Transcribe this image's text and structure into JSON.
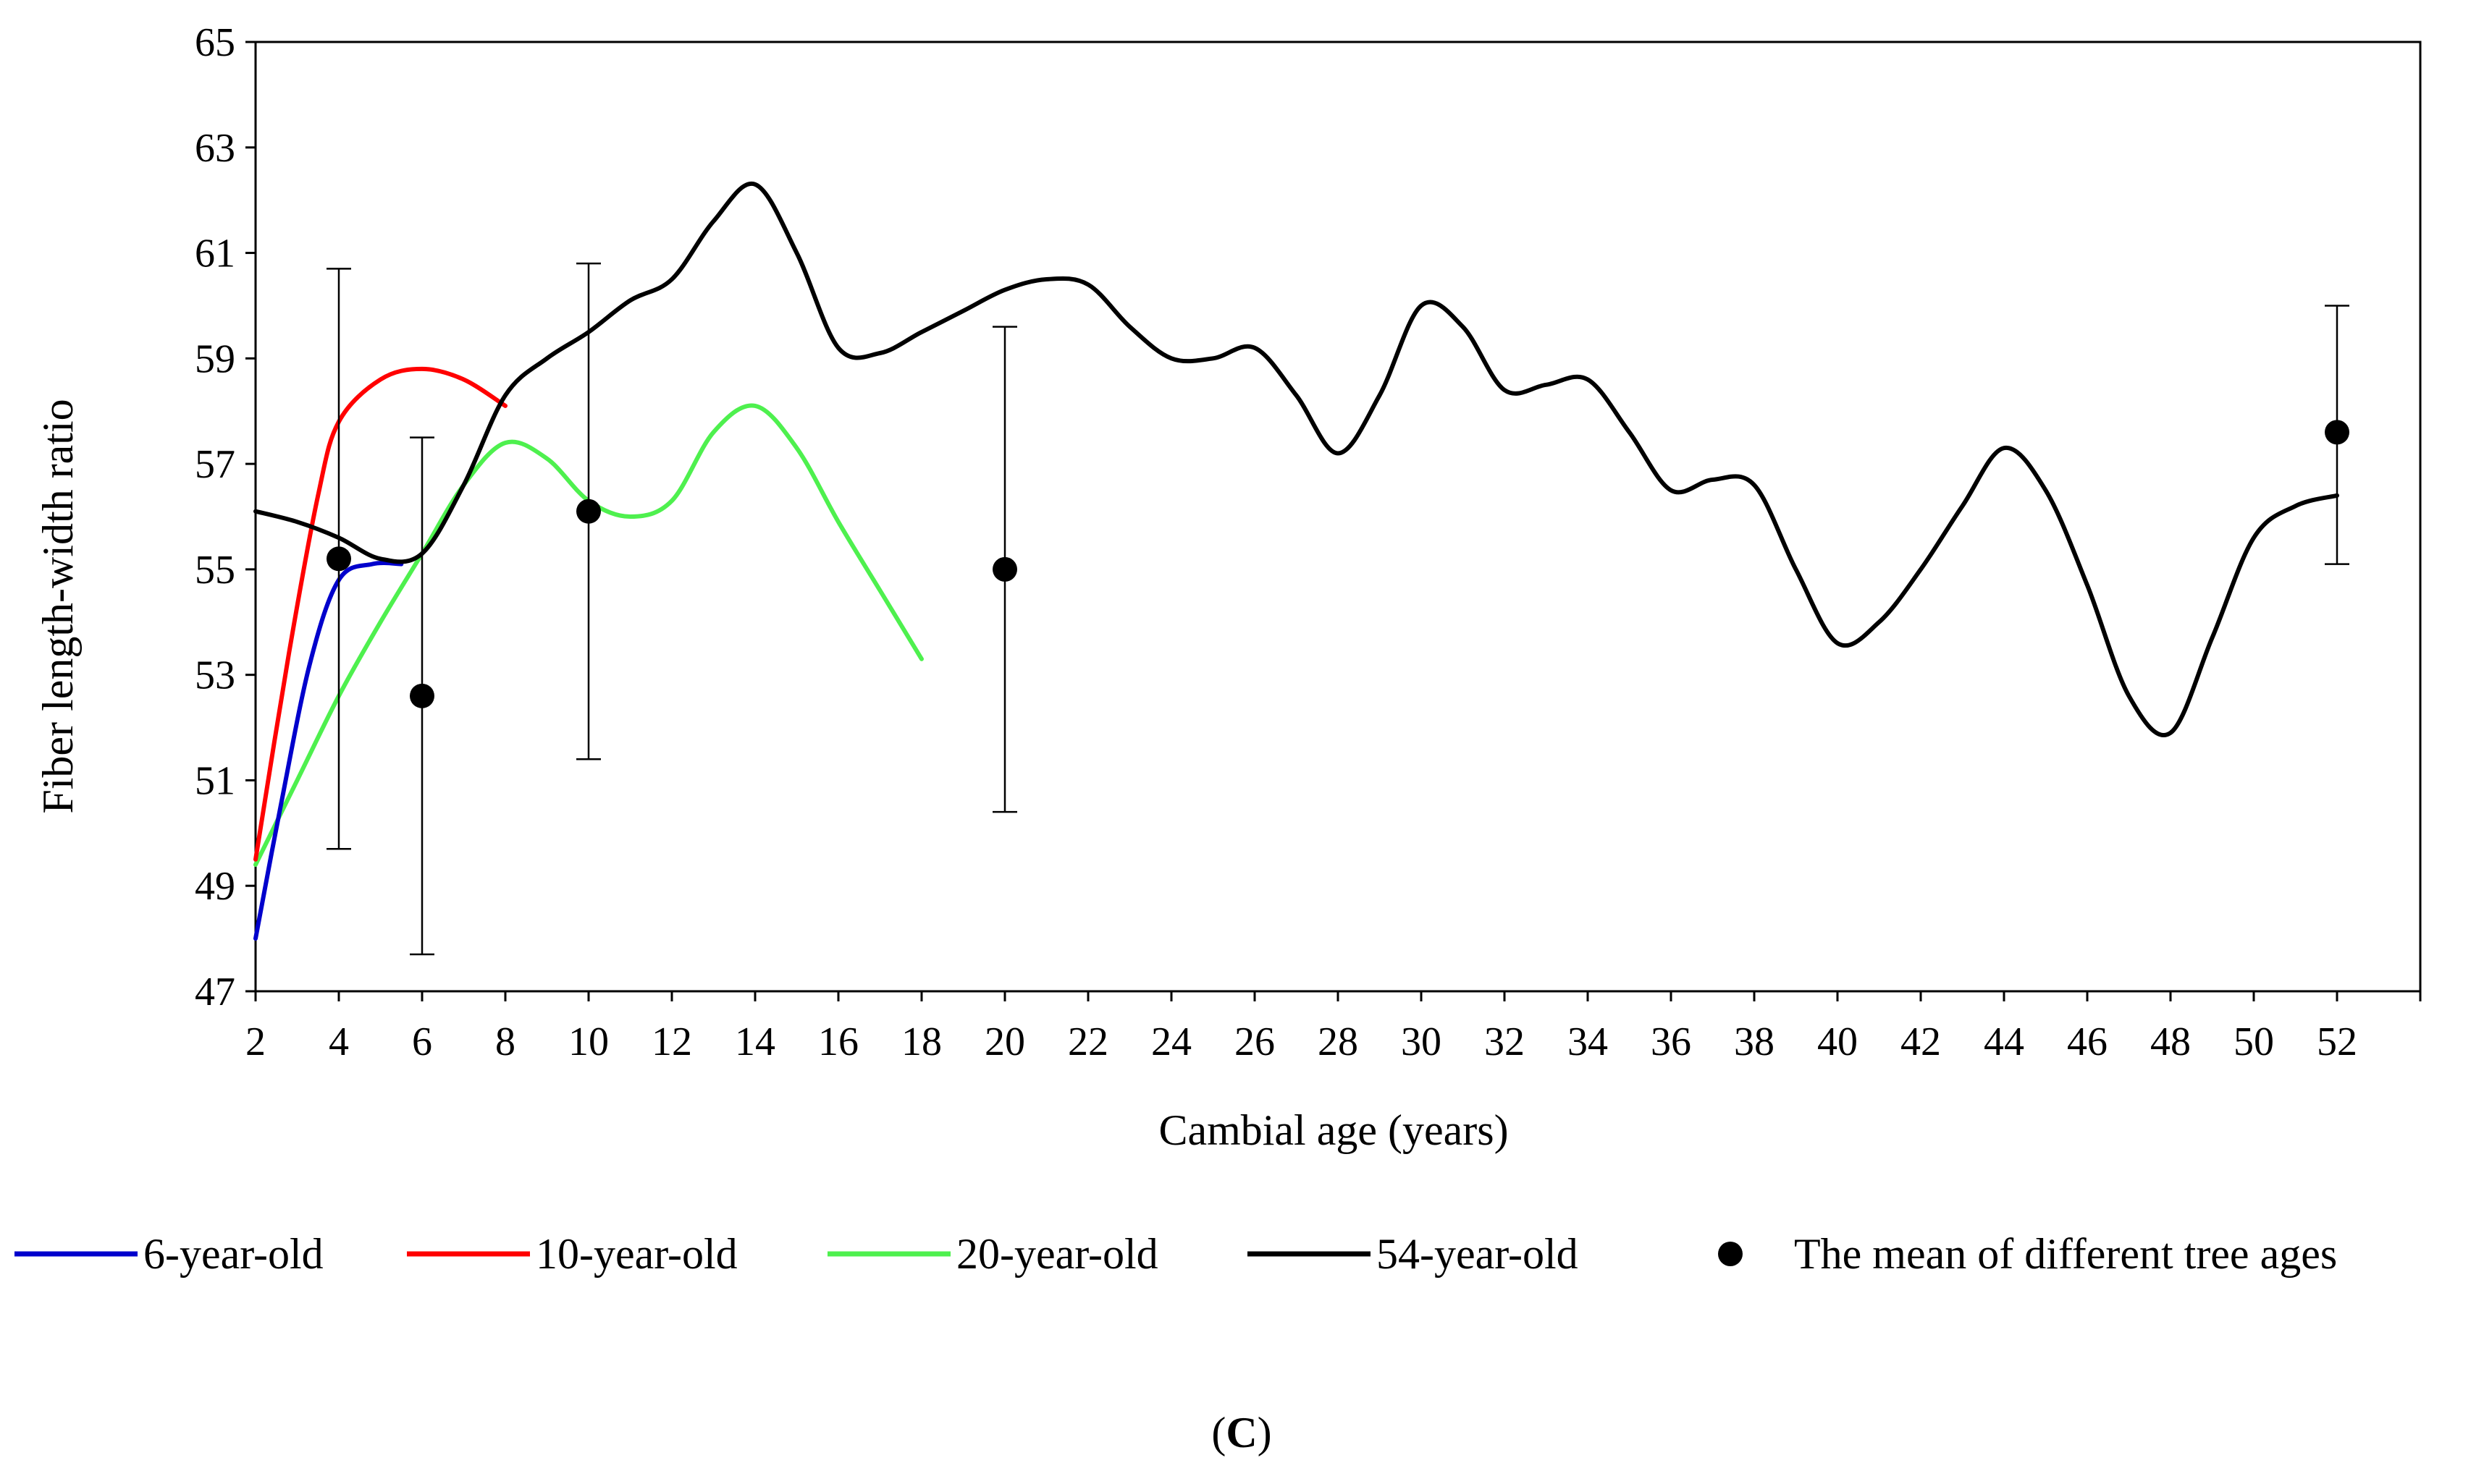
{
  "chart_data": {
    "type": "line",
    "panel_label": "C",
    "xlabel": "Cambial age (years)",
    "ylabel": "Fiber length-width ratio",
    "xlim": [
      2,
      54
    ],
    "ylim": [
      47,
      65
    ],
    "xticks": [
      "2",
      "4",
      "6",
      "8",
      "10",
      "12",
      "14",
      "16",
      "18",
      "20",
      "22",
      "24",
      "26",
      "28",
      "30",
      "32",
      "34",
      "36",
      "38",
      "40",
      "42",
      "44",
      "46",
      "48",
      "50",
      "52"
    ],
    "yticks": [
      "47",
      "49",
      "51",
      "53",
      "55",
      "57",
      "59",
      "61",
      "63",
      "65"
    ],
    "series": [
      {
        "name": "6-year-old",
        "color": "#0000cc",
        "points": [
          [
            2,
            48.0
          ],
          [
            2.6,
            50.5
          ],
          [
            3.3,
            53.2
          ],
          [
            4,
            54.8
          ],
          [
            4.8,
            55.1
          ],
          [
            5.5,
            55.1
          ]
        ]
      },
      {
        "name": "10-year-old",
        "color": "#ff0000",
        "points": [
          [
            2,
            49.5
          ],
          [
            2.8,
            53.4
          ],
          [
            3.5,
            56.4
          ],
          [
            4,
            57.8
          ],
          [
            5,
            58.6
          ],
          [
            6,
            58.8
          ],
          [
            7,
            58.6
          ],
          [
            8,
            58.1
          ]
        ]
      },
      {
        "name": "20-year-old",
        "color": "#4ef04e",
        "points": [
          [
            2,
            49.4
          ],
          [
            3,
            51.0
          ],
          [
            4,
            52.6
          ],
          [
            5,
            54.0
          ],
          [
            6,
            55.3
          ],
          [
            7,
            56.6
          ],
          [
            8,
            57.4
          ],
          [
            9,
            57.1
          ],
          [
            10,
            56.3
          ],
          [
            11,
            56.0
          ],
          [
            12,
            56.3
          ],
          [
            13,
            57.6
          ],
          [
            14,
            58.1
          ],
          [
            15,
            57.3
          ],
          [
            16,
            55.9
          ],
          [
            17,
            54.6
          ],
          [
            18,
            53.3
          ]
        ]
      },
      {
        "name": "54-year-old",
        "color": "#000000",
        "points": [
          [
            2,
            56.1
          ],
          [
            3,
            55.9
          ],
          [
            4,
            55.6
          ],
          [
            5,
            55.2
          ],
          [
            6,
            55.3
          ],
          [
            7,
            56.6
          ],
          [
            8,
            58.3
          ],
          [
            9,
            59.0
          ],
          [
            10,
            59.5
          ],
          [
            11,
            60.1
          ],
          [
            12,
            60.5
          ],
          [
            13,
            61.6
          ],
          [
            14,
            62.3
          ],
          [
            15,
            61.0
          ],
          [
            16,
            59.2
          ],
          [
            17,
            59.1
          ],
          [
            18,
            59.5
          ],
          [
            19,
            59.9
          ],
          [
            20,
            60.3
          ],
          [
            21,
            60.5
          ],
          [
            22,
            60.4
          ],
          [
            23,
            59.6
          ],
          [
            24,
            59.0
          ],
          [
            25,
            59.0
          ],
          [
            26,
            59.2
          ],
          [
            27,
            58.3
          ],
          [
            28,
            57.2
          ],
          [
            29,
            58.3
          ],
          [
            30,
            60.0
          ],
          [
            31,
            59.6
          ],
          [
            32,
            58.4
          ],
          [
            33,
            58.5
          ],
          [
            34,
            58.6
          ],
          [
            35,
            57.6
          ],
          [
            36,
            56.5
          ],
          [
            37,
            56.7
          ],
          [
            38,
            56.6
          ],
          [
            39,
            55.0
          ],
          [
            40,
            53.6
          ],
          [
            41,
            54.0
          ],
          [
            42,
            55.0
          ],
          [
            43,
            56.2
          ],
          [
            44,
            57.3
          ],
          [
            45,
            56.5
          ],
          [
            46,
            54.7
          ],
          [
            47,
            52.6
          ],
          [
            48,
            51.9
          ],
          [
            49,
            53.7
          ],
          [
            50,
            55.6
          ],
          [
            51,
            56.2
          ],
          [
            52,
            56.4
          ]
        ]
      }
    ],
    "means": {
      "name": "The mean of different tree ages",
      "color": "#000000",
      "points": [
        {
          "x": 4,
          "y": 55.2,
          "low": 49.7,
          "high": 60.7
        },
        {
          "x": 6,
          "y": 52.6,
          "low": 47.7,
          "high": 57.5
        },
        {
          "x": 10,
          "y": 56.1,
          "low": 51.4,
          "high": 60.8
        },
        {
          "x": 20,
          "y": 55.0,
          "low": 50.4,
          "high": 59.6
        },
        {
          "x": 52,
          "y": 57.6,
          "low": 55.1,
          "high": 60.0
        }
      ]
    },
    "legend_position": "bottom"
  }
}
